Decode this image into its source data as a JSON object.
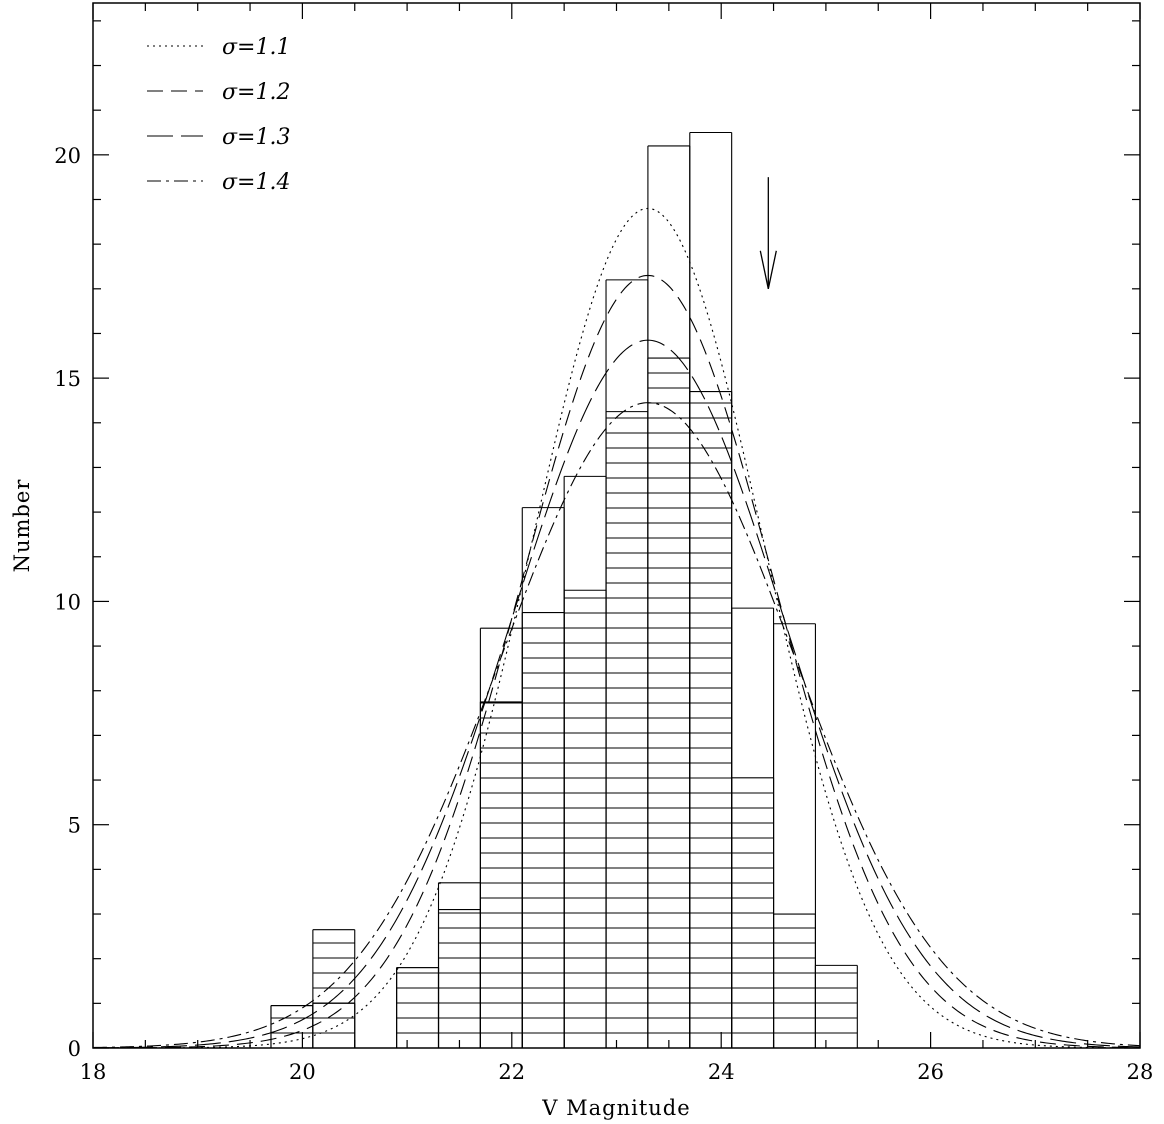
{
  "chart_data": {
    "type": "bar",
    "xlabel": "V Magnitude",
    "ylabel": "Number",
    "xlim": [
      18,
      28
    ],
    "ylim": [
      0,
      23.4
    ],
    "xticks": [
      18,
      20,
      22,
      24,
      26,
      28
    ],
    "yticks": [
      0,
      5,
      10,
      15,
      20
    ],
    "grid": false,
    "legend_position": "top-left",
    "histograms": [
      {
        "style": "open",
        "bin_edges": [
          19.7,
          20.1,
          20.5,
          20.9,
          21.3,
          21.7,
          22.1,
          22.5,
          22.9,
          23.3,
          23.7,
          24.1,
          24.5,
          24.9,
          25.3
        ],
        "counts": [
          0.95,
          1.0,
          0,
          1.8,
          3.7,
          9.4,
          12.1,
          12.8,
          17.2,
          20.2,
          20.5,
          9.85,
          9.5,
          0
        ]
      },
      {
        "style": "hatched",
        "bin_edges": [
          19.7,
          20.1,
          20.5,
          20.9,
          21.3,
          21.7,
          22.1,
          22.5,
          22.9,
          23.3,
          23.7,
          24.1,
          24.5,
          24.9,
          25.3
        ],
        "counts": [
          0.95,
          2.65,
          0,
          1.8,
          3.1,
          7.75,
          9.75,
          10.25,
          14.25,
          15.45,
          14.7,
          6.05,
          3.0,
          1.85
        ]
      }
    ],
    "gaussian_mean": 23.3,
    "series": [
      {
        "name": "σ=1.1",
        "sigma": 1.1,
        "peak": 18.8,
        "dash": "dotted"
      },
      {
        "name": "σ=1.2",
        "sigma": 1.2,
        "peak": 17.3,
        "dash": "dashed"
      },
      {
        "name": "σ=1.3",
        "sigma": 1.3,
        "peak": 15.85,
        "dash": "long-dashed"
      },
      {
        "name": "σ=1.4",
        "sigma": 1.4,
        "peak": 14.45,
        "dash": "dash-dot"
      }
    ],
    "annotations": [
      {
        "type": "arrow",
        "x": 24.45,
        "y_from": 19.5,
        "y_to": 17.0
      }
    ]
  }
}
